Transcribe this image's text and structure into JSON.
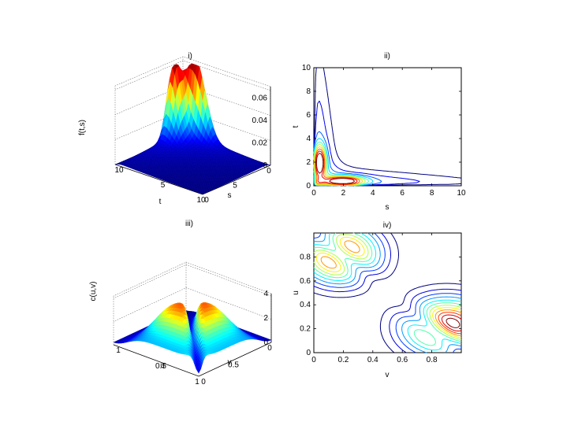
{
  "chart_data": [
    {
      "type": "surface",
      "title": "i)",
      "xlabel": "t",
      "ylabel": "s",
      "zlabel": "f(t,s)",
      "x_ticks": [
        "0",
        "5",
        "10"
      ],
      "y_ticks": [
        "0",
        "5",
        "10"
      ],
      "z_ticks": [
        "0",
        "0.02",
        "0.04",
        "0.06"
      ],
      "xlim": [
        0,
        10
      ],
      "ylim": [
        0,
        10
      ],
      "zlim": [
        0,
        0.07
      ],
      "peaks": [
        {
          "t": 0.4,
          "s": 2.0,
          "z": 0.068
        },
        {
          "t": 2.0,
          "s": 0.4,
          "z": 0.068
        }
      ],
      "colormap": "jet",
      "grid": true
    },
    {
      "type": "contour",
      "title": "ii)",
      "xlabel": "s",
      "ylabel": "t",
      "x_ticks": [
        "0",
        "2",
        "4",
        "6",
        "8",
        "10"
      ],
      "y_ticks": [
        "0",
        "2",
        "4",
        "6",
        "8",
        "10"
      ],
      "xlim": [
        0,
        10
      ],
      "ylim": [
        0,
        10
      ],
      "colormap": "jet",
      "levels": 10
    },
    {
      "type": "surface",
      "title": "iii)",
      "xlabel": "u",
      "ylabel": "v",
      "zlabel": "c(u,v)",
      "x_ticks": [
        "0",
        "0.5",
        "1"
      ],
      "y_ticks": [
        "0",
        "0.5",
        "1"
      ],
      "z_ticks": [
        "0",
        "2",
        "4"
      ],
      "xlim": [
        0,
        1
      ],
      "ylim": [
        0,
        1
      ],
      "zlim": [
        0,
        4
      ],
      "colormap": "jet",
      "grid": true
    },
    {
      "type": "contour",
      "title": "iv)",
      "xlabel": "v",
      "ylabel": "u",
      "x_ticks": [
        "0",
        "0.2",
        "0.4",
        "0.6",
        "0.8"
      ],
      "y_ticks": [
        "0",
        "0.2",
        "0.4",
        "0.6",
        "0.8"
      ],
      "xlim": [
        0,
        1
      ],
      "ylim": [
        0,
        1
      ],
      "colormap": "jet",
      "levels": 12
    }
  ]
}
